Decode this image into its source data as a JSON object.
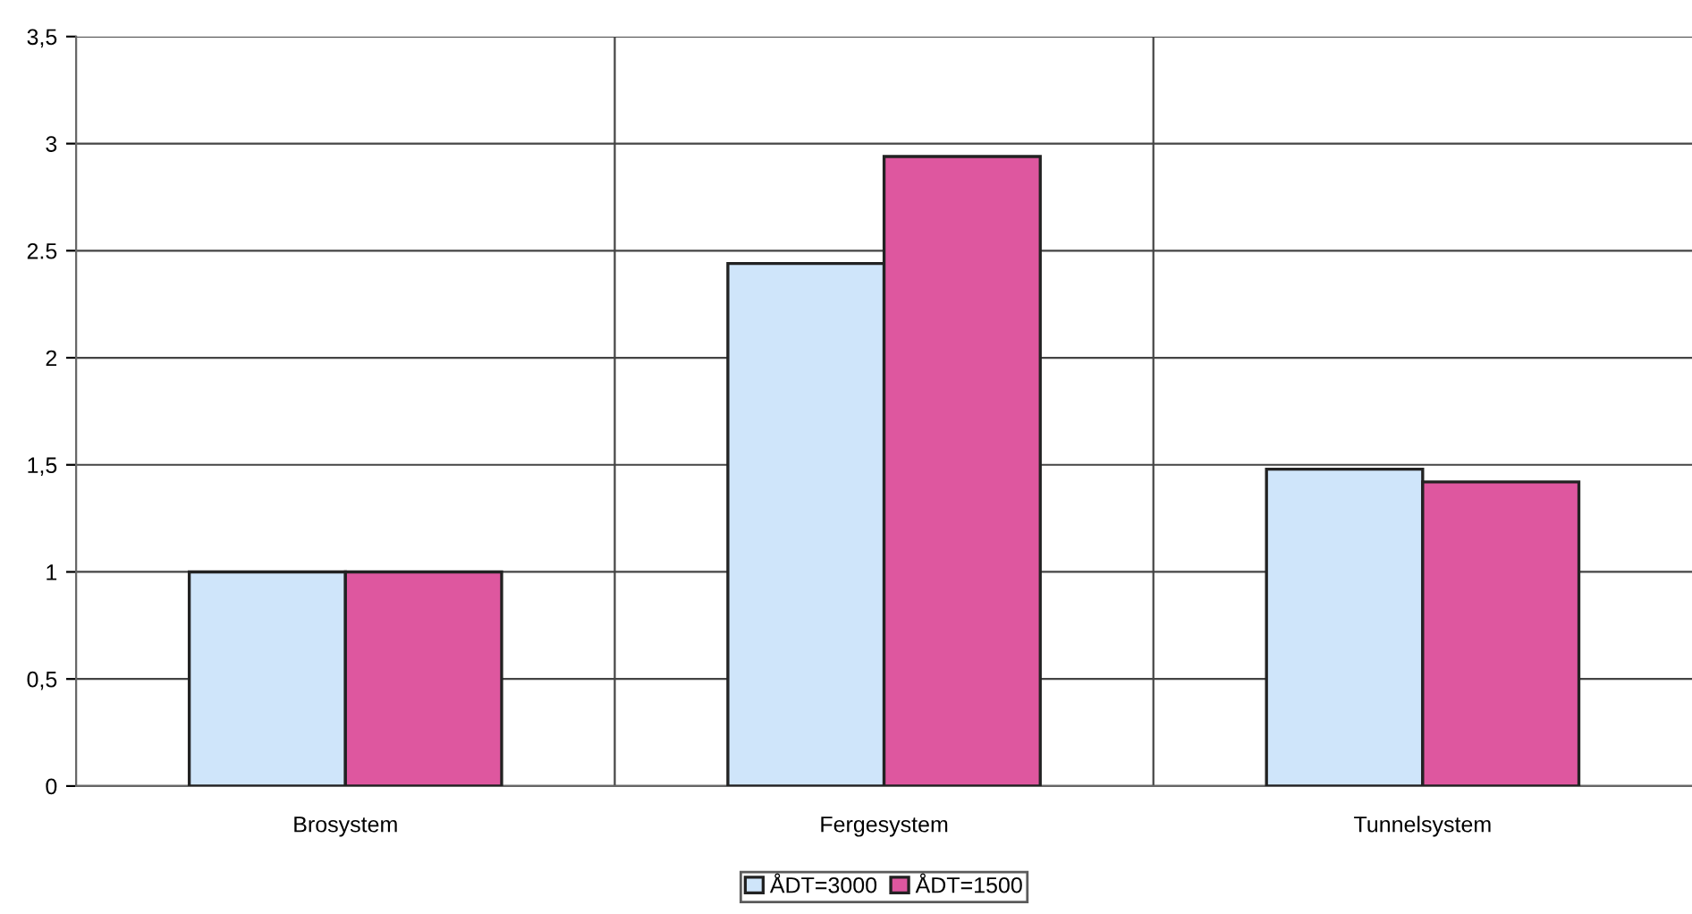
{
  "chart_data": {
    "type": "bar",
    "categories": [
      "Brosystem",
      "Fergesystem",
      "Tunnelsystem"
    ],
    "series": [
      {
        "name": "ÅDT=3000",
        "color": "#cfe5fa",
        "values": [
          1.0,
          2.44,
          1.48
        ]
      },
      {
        "name": "ÅDT=1500",
        "color": "#de579f",
        "values": [
          1.0,
          2.94,
          1.42
        ]
      }
    ],
    "ylim": [
      0,
      3.5
    ],
    "yticks": [
      {
        "value": 0,
        "label": "0"
      },
      {
        "value": 0.5,
        "label": "0,5"
      },
      {
        "value": 1,
        "label": "1"
      },
      {
        "value": 1.5,
        "label": "1,5"
      },
      {
        "value": 2,
        "label": "2"
      },
      {
        "value": 2.5,
        "label": "2.5"
      },
      {
        "value": 3,
        "label": "3"
      },
      {
        "value": 3.5,
        "label": "3,5"
      }
    ],
    "grid": true,
    "legend": "bottom"
  }
}
